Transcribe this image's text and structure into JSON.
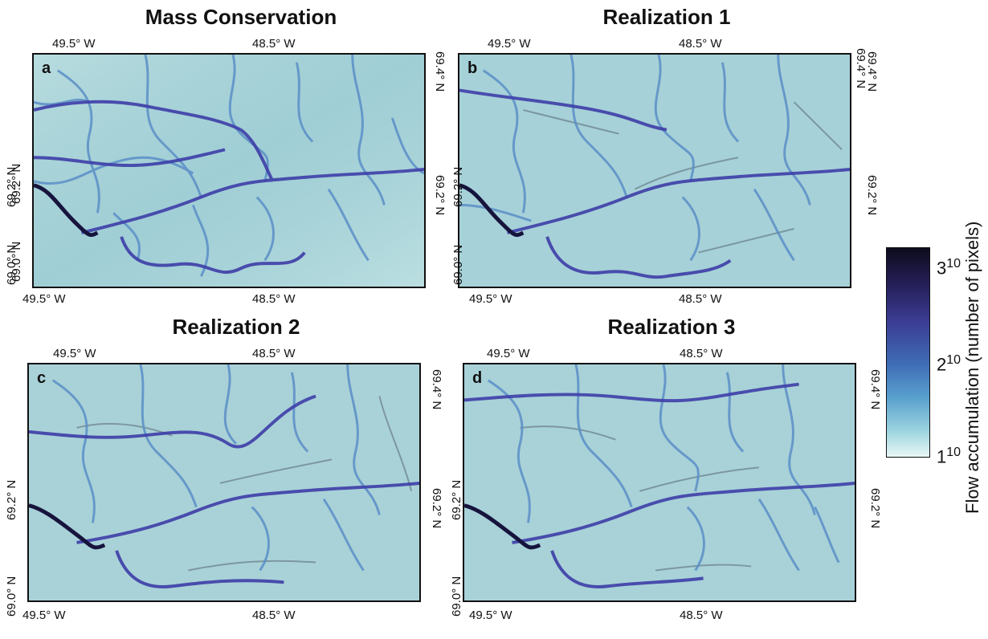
{
  "panels": [
    {
      "id": "a",
      "title": "Mass Conservation",
      "letter": "a"
    },
    {
      "id": "b",
      "title": "Realization 1",
      "letter": "b"
    },
    {
      "id": "c",
      "title": "Realization 2",
      "letter": "c"
    },
    {
      "id": "d",
      "title": "Realization 3",
      "letter": "d"
    }
  ],
  "ticks": {
    "lon_west": "49.5° W",
    "lon_east": "48.5° W",
    "lat_north": "69.4° N",
    "lat_mid": "69.2° N",
    "lat_south": "69.0° N"
  },
  "colorbar": {
    "title": "Flow accumulation (number of pixels)",
    "ticks": [
      {
        "base": "3",
        "exp": "10"
      },
      {
        "base": "2",
        "exp": "10"
      },
      {
        "base": "1",
        "exp": "10"
      }
    ],
    "colors": [
      "#0d0b1c",
      "#26205a",
      "#3b3c93",
      "#3e6bb4",
      "#5aa1cf",
      "#9ed5df",
      "#eaf7f6"
    ]
  }
}
